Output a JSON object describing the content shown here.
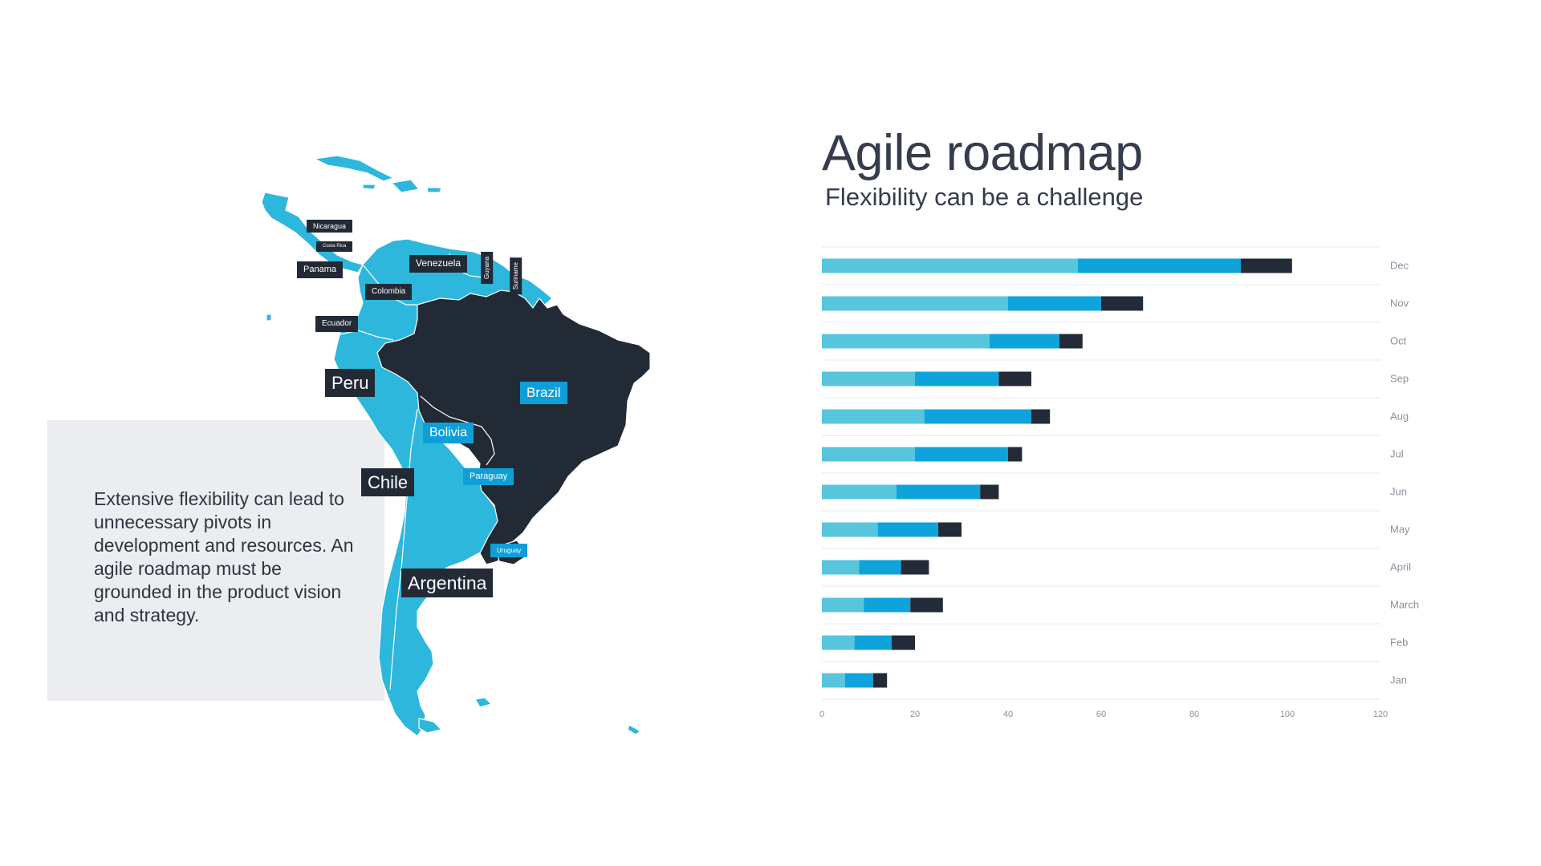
{
  "slide": {
    "title": "Agile roadmap",
    "subtitle": "Flexibility can be a challenge",
    "body": "Extensive flexibility can lead to unnecessary pivots in development and resources. An agile roadmap must be grounded in the product vision and strategy."
  },
  "map": {
    "colors": {
      "land": "#2db7dc",
      "highlight": "#222a36",
      "label_dark": "#222a36",
      "label_blue": "#0f9fd8"
    },
    "labels": {
      "nicaragua": "Nicaragua",
      "costa_rica": "Costa Rica",
      "panama": "Panama",
      "venezuela": "Venezuela",
      "guyana": "Guyana",
      "suriname": "Suriname",
      "colombia": "Colombia",
      "ecuador": "Ecuador",
      "peru": "Peru",
      "brazil": "Brazil",
      "bolivia": "Bolivia",
      "chile": "Chile",
      "paraguay": "Paraguay",
      "uruguay": "Uruguay",
      "argentina": "Argentina"
    }
  },
  "chart_data": {
    "type": "bar",
    "orientation": "horizontal",
    "stacked": true,
    "categories": [
      "Jan",
      "Feb",
      "March",
      "April",
      "May",
      "Jun",
      "Jul",
      "Aug",
      "Sep",
      "Oct",
      "Nov",
      "Dec"
    ],
    "series": [
      {
        "values": [
          5,
          7,
          9,
          8,
          12,
          16,
          20,
          22,
          20,
          36,
          40,
          55
        ],
        "color": "#57c6dd"
      },
      {
        "values": [
          6,
          8,
          10,
          9,
          13,
          18,
          20,
          23,
          18,
          15,
          20,
          35
        ],
        "color": "#0fa3dc"
      },
      {
        "values": [
          3,
          5,
          7,
          6,
          5,
          4,
          3,
          4,
          7,
          5,
          9,
          11
        ],
        "color": "#232b38"
      }
    ],
    "xlim": [
      0,
      120
    ],
    "xticks": [
      0,
      20,
      40,
      60,
      80,
      100,
      120
    ],
    "category_axis_position": "right",
    "grid": true,
    "legend": "none"
  }
}
